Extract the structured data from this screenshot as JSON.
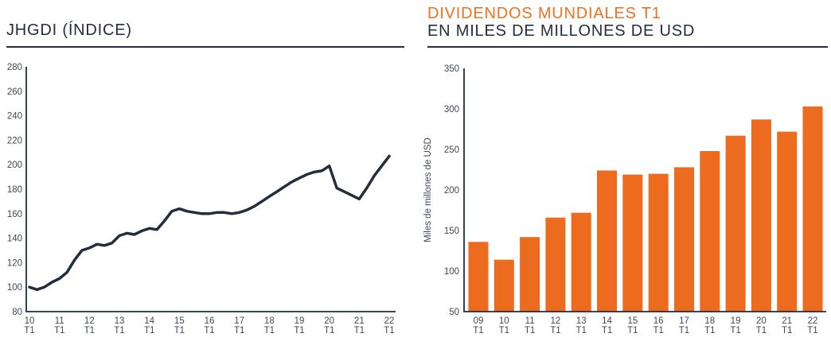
{
  "colors": {
    "navy": "#232d3c",
    "orange": "#ec6b1f",
    "title_orange": "#f2701e",
    "tick_text": "#3e4853",
    "background": "#ffffff"
  },
  "left_panel": {
    "title": "JHGDI (ÍNDICE)"
  },
  "right_panel": {
    "title_line1": "DIVIDENDOS MUNDIALES T1",
    "title_line2": "EN MILES DE MILLONES DE USD",
    "ylabel": "Miles de millones de USD"
  },
  "chart_data": [
    {
      "type": "line",
      "title": "JHGDI (ÍNDICE)",
      "x_frequency": "quarterly",
      "x_start": "10 T1",
      "x_end": "22 T1",
      "x_labels": [
        "10 T1",
        "11 T1",
        "12 T1",
        "13 T1",
        "14 T1",
        "15 T1",
        "16 T1",
        "17 T1",
        "18 T1",
        "19 T1",
        "20 T1",
        "21 T1",
        "22 T1"
      ],
      "values": [
        100,
        98,
        100,
        104,
        107,
        112,
        122,
        130,
        132,
        135,
        134,
        136,
        142,
        144,
        143,
        146,
        148,
        147,
        154,
        162,
        164,
        162,
        161,
        160,
        160,
        161,
        161,
        160,
        161,
        163,
        166,
        170,
        174,
        178,
        182,
        186,
        189,
        192,
        194,
        195,
        199,
        181,
        178,
        175,
        172,
        181,
        191,
        199,
        207
      ],
      "ylim": [
        80,
        280
      ],
      "yticks": [
        80,
        100,
        120,
        140,
        160,
        180,
        200,
        220,
        240,
        260,
        280
      ],
      "grid": false,
      "legend": "none",
      "line_color": "#232d3c"
    },
    {
      "type": "bar",
      "title": "DIVIDENDOS MUNDIALES T1",
      "subtitle": "EN MILES DE MILLONES DE USD",
      "ylabel": "Miles de millones de USD",
      "categories": [
        "09 T1",
        "10 T1",
        "11 T1",
        "12 T1",
        "13 T1",
        "14 T1",
        "15 T1",
        "16 T1",
        "17 T1",
        "18 T1",
        "19 T1",
        "20 T1",
        "21 T1",
        "22 T1"
      ],
      "values": [
        136,
        114,
        142,
        166,
        172,
        224,
        219,
        220,
        228,
        248,
        267,
        287,
        272,
        303
      ],
      "ylim": [
        50,
        350
      ],
      "yticks": [
        50,
        100,
        150,
        200,
        250,
        300,
        350
      ],
      "grid": false,
      "legend": "none",
      "bar_color": "#ec6b1f"
    }
  ]
}
